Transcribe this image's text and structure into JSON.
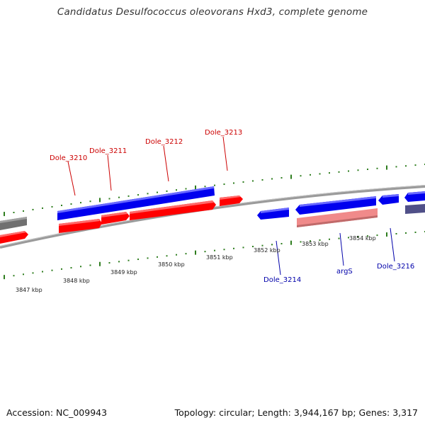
{
  "title": "Candidatus Desulfococcus oleovorans Hxd3, complete genome",
  "footer": {
    "accession": "Accession: NC_009943",
    "summary": "Topology: circular; Length: 3,944,167 bp; Genes: 3,317"
  },
  "colors": {
    "forward_gene": "#ff0000",
    "reverse_gene": "#0000ff",
    "rna_gene": "#f08080",
    "forward_label": "#cc0000",
    "reverse_label": "#0000aa",
    "tick": "#2e7d1e",
    "backbone": "#808080"
  },
  "kbp_labels": [
    "3847 kbp",
    "3848 kbp",
    "3849 kbp",
    "3850 kbp",
    "3851 kbp",
    "3852 kbp",
    "3853 kbp",
    "3854 kbp"
  ],
  "forward_gene_labels": [
    "Dole_3210",
    "Dole_3211",
    "Dole_3212",
    "Dole_3213"
  ],
  "reverse_gene_labels": [
    "Dole_3214",
    "argS",
    "Dole_3216"
  ]
}
